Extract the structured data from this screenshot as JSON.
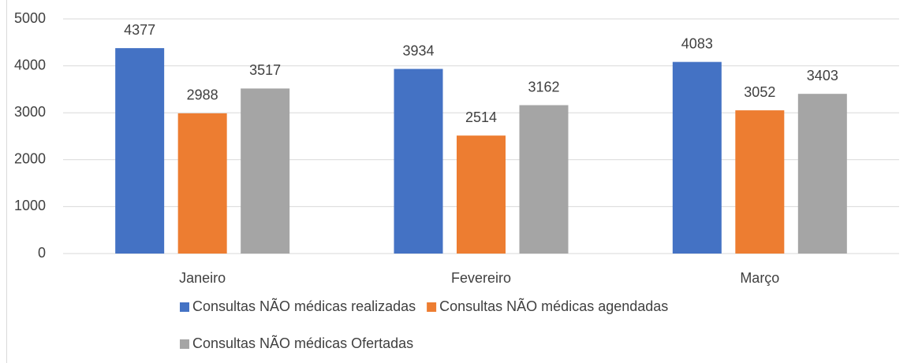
{
  "chart_data": {
    "type": "bar",
    "categories": [
      "Janeiro",
      "Fevereiro",
      "Março"
    ],
    "series": [
      {
        "name": "Consultas NÃO médicas realizadas",
        "color": "#4472c4",
        "values": [
          4377,
          3934,
          4083
        ]
      },
      {
        "name": "Consultas NÃO médicas agendadas",
        "color": "#ed7d31",
        "values": [
          2988,
          2514,
          3052
        ]
      },
      {
        "name": "Consultas NÃO médicas Ofertadas",
        "color": "#a5a5a5",
        "values": [
          3517,
          3162,
          3403
        ]
      }
    ],
    "ylim": [
      0,
      5000
    ],
    "yticks": [
      0,
      1000,
      2000,
      3000,
      4000,
      5000
    ],
    "grid": true,
    "legend": "bottom"
  }
}
